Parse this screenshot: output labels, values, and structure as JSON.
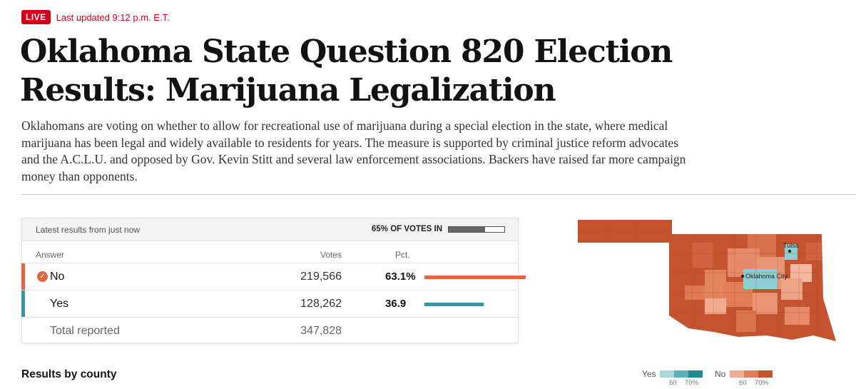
{
  "header": {
    "live_label": "LIVE",
    "updated": "Last updated 9:12 p.m. E.T."
  },
  "article": {
    "title": "Oklahoma State Question 820 Election Results: Marijuana Legalization",
    "dek": "Oklahomans are voting on whether to allow for recreational use of marijuana during a special election in the state, where medical marijuana has been legal and widely available to residents for years. The measure is supported by criminal justice reform advocates and the A.C.L.U. and opposed by Gov. Kevin Stitt and several law enforcement associations. Backers have raised far more campaign money than opponents."
  },
  "results": {
    "latest": "Latest results from just now",
    "votes_in_label": "65% OF VOTES IN",
    "votes_in_fraction": 0.65,
    "columns": {
      "answer": "Answer",
      "votes": "Votes",
      "pct": "Pct."
    },
    "rows": [
      {
        "answer": "No",
        "votes": "219,566",
        "pct": "63.1%",
        "pct_value": 63.1,
        "winner": true,
        "color": "#e0683f"
      },
      {
        "answer": "Yes",
        "votes": "128,262",
        "pct": "36.9",
        "pct_value": 36.9,
        "winner": false,
        "color": "#3b959f"
      }
    ],
    "total": {
      "label": "Total reported",
      "votes": "347,828"
    }
  },
  "map": {
    "cities": [
      "Tulsa",
      "Oklahoma City"
    ],
    "no_color": "#c4532f",
    "yes_color": "#8ecfd6"
  },
  "section_title": "Results by county",
  "legend": {
    "yes_label": "Yes",
    "no_label": "No",
    "yes_colors": [
      "#a7d8de",
      "#5ab1ba",
      "#1f8a94"
    ],
    "no_colors": [
      "#f0ab90",
      "#e27d59",
      "#c4532f"
    ],
    "ticks": [
      "60",
      "70%"
    ]
  }
}
